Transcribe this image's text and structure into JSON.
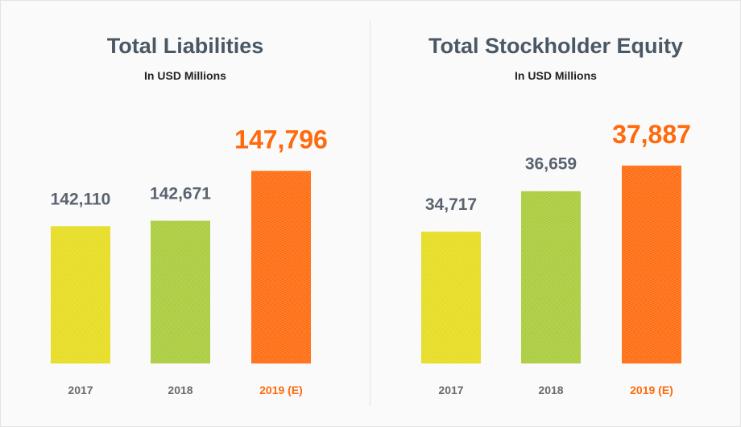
{
  "chart_data": [
    {
      "type": "bar",
      "title": "Total Liabilities",
      "subtitle": "In USD Millions",
      "categories": [
        "2017",
        "2018",
        "2019 (E)"
      ],
      "values": [
        142110,
        142671,
        147796
      ],
      "value_labels": [
        "142,110",
        "142,671",
        "147,796"
      ],
      "highlight_index": 2,
      "colors": [
        "#e6dc1e",
        "#a9cb3a",
        "#ff6a0d"
      ],
      "label_colors": [
        "#5a6470",
        "#5a6470",
        "#ff6a0d"
      ],
      "ylim": [
        128000,
        148500
      ]
    },
    {
      "type": "bar",
      "title": "Total Stockholder Equity",
      "subtitle": "In USD Millions",
      "categories": [
        "2017",
        "2018",
        "2019 (E)"
      ],
      "values": [
        34717,
        36659,
        37887
      ],
      "value_labels": [
        "34,717",
        "36,659",
        "37,887"
      ],
      "highlight_index": 2,
      "colors": [
        "#e6dc1e",
        "#a9cb3a",
        "#ff6a0d"
      ],
      "label_colors": [
        "#5a6470",
        "#5a6470",
        "#ff6a0d"
      ],
      "ylim": [
        28400,
        37960
      ]
    }
  ]
}
